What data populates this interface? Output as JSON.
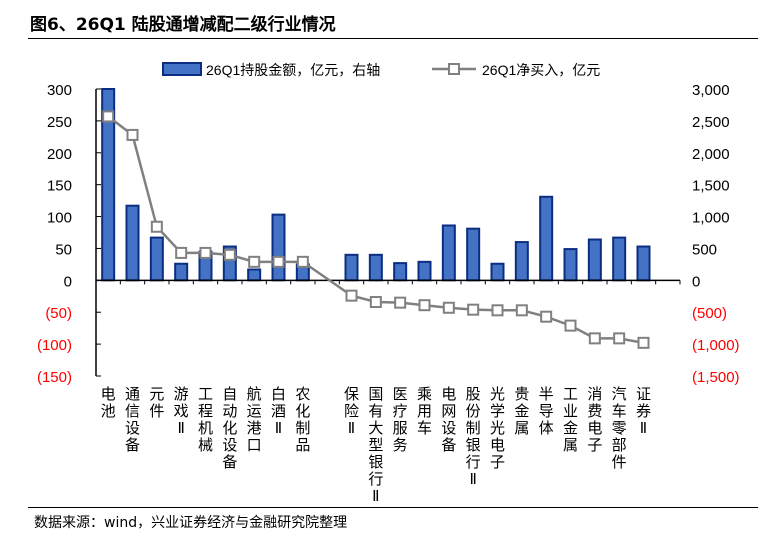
{
  "title": "图6、26Q1 陆股通增减配二级行业情况",
  "source": "数据来源：wind，兴业证券经济与金融研究院整理",
  "colors": {
    "bar_fill": "#4472C4",
    "bar_edge": "#0B2D82",
    "line": "#808080",
    "negative_tick": "#FF0000"
  },
  "chart_data": {
    "type": "bar+line",
    "categories": [
      "电池",
      "通信设备",
      "元件",
      "游戏Ⅱ",
      "工程机械",
      "自动化设备",
      "航运港口",
      "白酒Ⅱ",
      "农化制品",
      "",
      "保险Ⅱ",
      "国有大型银行Ⅱ",
      "医疗服务",
      "乘用车",
      "电网设备",
      "股份制银行Ⅱ",
      "光学光电子",
      "贵金属",
      "半导体",
      "工业金属",
      "消费电子",
      "汽车零部件",
      "证券Ⅱ"
    ],
    "series": [
      {
        "name": "26Q1持股金额，亿元，右轴",
        "type": "bar",
        "axis": "right",
        "values": [
          3000,
          1170,
          670,
          260,
          450,
          530,
          170,
          1030,
          250,
          null,
          400,
          400,
          270,
          290,
          860,
          810,
          260,
          600,
          1310,
          490,
          640,
          670,
          530
        ]
      },
      {
        "name": "26Q1净买入，亿元",
        "type": "line",
        "axis": "left",
        "marker": "square",
        "values": [
          257,
          228,
          84,
          43,
          43,
          40,
          29,
          29,
          29,
          null,
          -24,
          -34,
          -35,
          -39,
          -43,
          -46,
          -47,
          -47,
          -57,
          -71,
          -91,
          -91,
          -98
        ]
      }
    ],
    "left_axis": {
      "ylim": [
        -150,
        300
      ],
      "ticks": [
        "300",
        "250",
        "200",
        "150",
        "100",
        "50",
        "0",
        "(50)",
        "(100)",
        "(150)"
      ],
      "tick_values": [
        300,
        250,
        200,
        150,
        100,
        50,
        0,
        -50,
        -100,
        -150
      ]
    },
    "right_axis": {
      "ylim": [
        -1500,
        3000
      ],
      "ticks": [
        "3,000",
        "2,500",
        "2,000",
        "1,500",
        "1,000",
        "500",
        "0",
        "(500)",
        "(1,000)",
        "(1,500)"
      ],
      "tick_values": [
        3000,
        2500,
        2000,
        1500,
        1000,
        500,
        0,
        -500,
        -1000,
        -1500
      ]
    },
    "legend_placement": "top",
    "grid": false
  }
}
